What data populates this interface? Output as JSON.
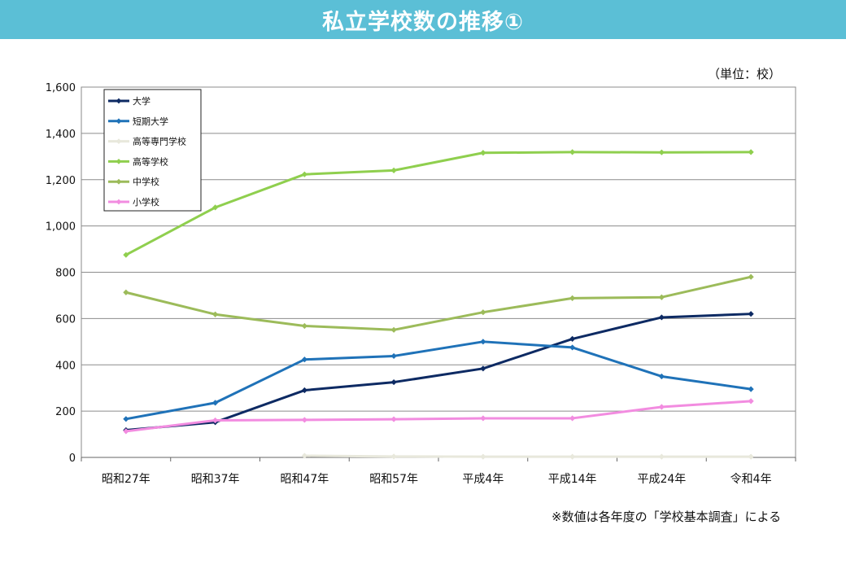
{
  "header": {
    "title": "私立学校数の推移①"
  },
  "notes": {
    "unit": "（単位：校）",
    "source": "※数値は各年度の「学校基本調査」による"
  },
  "chart_data": {
    "type": "line",
    "title": "私立学校数の推移①",
    "xlabel": "",
    "ylabel": "",
    "categories": [
      "昭和27年",
      "昭和37年",
      "昭和47年",
      "昭和57年",
      "平成4年",
      "平成14年",
      "平成24年",
      "令和4年"
    ],
    "ylim": [
      0,
      1600
    ],
    "yticks": [
      0,
      200,
      400,
      600,
      800,
      1000,
      1200,
      1400,
      1600
    ],
    "ytick_labels": [
      "0",
      "200",
      "400",
      "600",
      "800",
      "1,000",
      "1,200",
      "1,400",
      "1,600"
    ],
    "grid": true,
    "legend_position": "top-left",
    "series": [
      {
        "name": "大学",
        "color": "#0d2a63",
        "values": [
          118,
          152,
          290,
          325,
          384,
          512,
          605,
          620
        ]
      },
      {
        "name": "短期大学",
        "color": "#1f72b8",
        "values": [
          166,
          236,
          423,
          438,
          500,
          475,
          350,
          295
        ]
      },
      {
        "name": "高等専門学校",
        "color": "#e8e8dc",
        "values": [
          null,
          null,
          7,
          4,
          3,
          3,
          3,
          3
        ]
      },
      {
        "name": "高等学校",
        "color": "#8fcf4e",
        "values": [
          875,
          1080,
          1223,
          1240,
          1316,
          1319,
          1318,
          1319
        ]
      },
      {
        "name": "中学校",
        "color": "#9cbb5a",
        "values": [
          713,
          618,
          568,
          551,
          627,
          688,
          692,
          780
        ]
      },
      {
        "name": "小学校",
        "color": "#f28ce0",
        "values": [
          113,
          160,
          162,
          165,
          169,
          169,
          218,
          243
        ]
      }
    ]
  }
}
